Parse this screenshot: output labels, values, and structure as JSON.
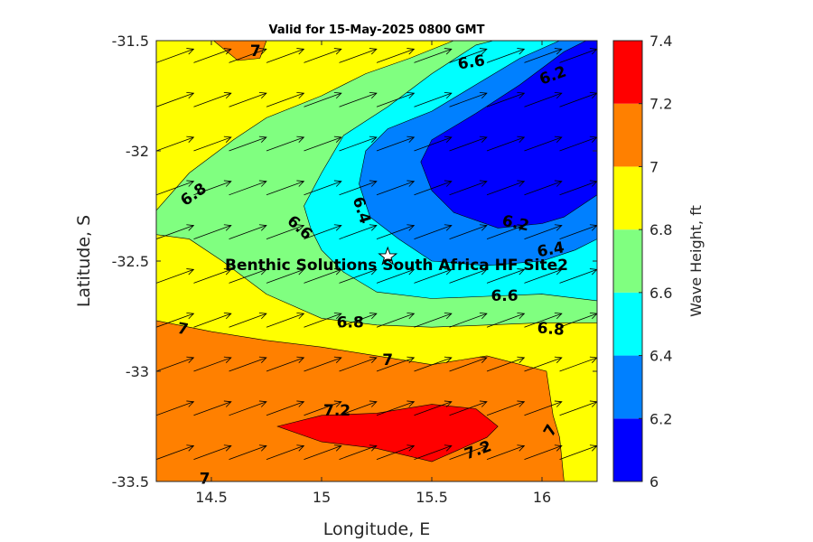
{
  "chart_data": {
    "type": "contour",
    "title": "Valid for 15-May-2025 0800 GMT",
    "xlabel": "Longitude, E",
    "ylabel": "Latitude, S",
    "xlim": [
      14.25,
      16.25
    ],
    "ylim": [
      -33.5,
      -31.5
    ],
    "xticks": [
      14.5,
      15,
      15.5,
      16
    ],
    "xtick_labels": [
      "14.5",
      "15",
      "15.5",
      "16"
    ],
    "yticks": [
      -31.5,
      -32,
      -32.5,
      -33,
      -33.5
    ],
    "ytick_labels": [
      "-31.5",
      "-32",
      "-32.5",
      "-33",
      "-33.5"
    ],
    "colorbar": {
      "label": "Wave Height, ft",
      "levels": [
        6,
        6.2,
        6.4,
        6.6,
        6.8,
        7,
        7.2,
        7.4
      ],
      "tick_labels": [
        "6",
        "6.2",
        "6.4",
        "6.6",
        "6.8",
        "7",
        "7.2",
        "7.4"
      ],
      "colors": [
        "#0000ff",
        "#0080ff",
        "#00ffff",
        "#80ff80",
        "#ffff00",
        "#ff8000",
        "#ff0000"
      ]
    },
    "regions": [
      {
        "level": 7.0,
        "color": "#ff8000",
        "points": [
          [
            14.25,
            -32.77
          ],
          [
            14.5,
            -32.82
          ],
          [
            14.75,
            -32.86
          ],
          [
            15.0,
            -32.89
          ],
          [
            15.25,
            -32.93
          ],
          [
            15.5,
            -32.97
          ],
          [
            15.75,
            -32.93
          ],
          [
            16.02,
            -33.0
          ],
          [
            16.05,
            -33.2
          ],
          [
            16.08,
            -33.3
          ],
          [
            16.1,
            -33.5
          ],
          [
            14.25,
            -33.5
          ]
        ]
      },
      {
        "level": 7.0,
        "color": "#ff8000",
        "points": [
          [
            14.51,
            -31.5
          ],
          [
            14.75,
            -31.5
          ],
          [
            14.72,
            -31.58
          ],
          [
            14.62,
            -31.59
          ]
        ]
      },
      {
        "level": 7.2,
        "color": "#ff0000",
        "points": [
          [
            14.8,
            -33.25
          ],
          [
            15.0,
            -33.2
          ],
          [
            15.25,
            -33.19
          ],
          [
            15.5,
            -33.15
          ],
          [
            15.7,
            -33.17
          ],
          [
            15.8,
            -33.25
          ],
          [
            15.75,
            -33.3
          ],
          [
            15.5,
            -33.41
          ],
          [
            15.25,
            -33.35
          ],
          [
            15.0,
            -33.32
          ]
        ]
      },
      {
        "level": 6.8,
        "color": "#80ff80",
        "points": [
          [
            14.25,
            -32.27
          ],
          [
            14.4,
            -32.1
          ],
          [
            14.6,
            -31.95
          ],
          [
            14.75,
            -31.85
          ],
          [
            15.0,
            -31.75
          ],
          [
            15.2,
            -31.65
          ],
          [
            15.4,
            -31.58
          ],
          [
            15.6,
            -31.5
          ],
          [
            16.25,
            -31.5
          ],
          [
            16.25,
            -32.78
          ],
          [
            16.0,
            -32.78
          ],
          [
            15.75,
            -32.79
          ],
          [
            15.5,
            -32.8
          ],
          [
            15.25,
            -32.79
          ],
          [
            15.0,
            -32.76
          ],
          [
            14.75,
            -32.65
          ],
          [
            14.55,
            -32.5
          ],
          [
            14.4,
            -32.4
          ],
          [
            14.25,
            -32.38
          ]
        ]
      },
      {
        "level": 6.6,
        "color": "#00ffff",
        "points": [
          [
            14.92,
            -32.25
          ],
          [
            15.0,
            -32.1
          ],
          [
            15.1,
            -31.93
          ],
          [
            15.3,
            -31.8
          ],
          [
            15.5,
            -31.65
          ],
          [
            15.7,
            -31.52
          ],
          [
            15.78,
            -31.5
          ],
          [
            16.25,
            -31.5
          ],
          [
            16.25,
            -32.68
          ],
          [
            16.0,
            -32.65
          ],
          [
            15.75,
            -32.66
          ],
          [
            15.5,
            -32.67
          ],
          [
            15.25,
            -32.64
          ],
          [
            15.1,
            -32.55
          ],
          [
            15.0,
            -32.45
          ],
          [
            14.95,
            -32.35
          ]
        ]
      },
      {
        "level": 6.4,
        "color": "#0080ff",
        "points": [
          [
            15.17,
            -32.15
          ],
          [
            15.2,
            -32.0
          ],
          [
            15.3,
            -31.9
          ],
          [
            15.5,
            -31.82
          ],
          [
            15.7,
            -31.7
          ],
          [
            15.9,
            -31.58
          ],
          [
            16.08,
            -31.5
          ],
          [
            16.25,
            -31.5
          ],
          [
            16.25,
            -32.4
          ],
          [
            16.15,
            -32.45
          ],
          [
            16.0,
            -32.5
          ],
          [
            15.75,
            -32.52
          ],
          [
            15.5,
            -32.5
          ],
          [
            15.35,
            -32.4
          ],
          [
            15.22,
            -32.3
          ]
        ]
      },
      {
        "level": 6.2,
        "color": "#0000ff",
        "points": [
          [
            15.45,
            -32.05
          ],
          [
            15.5,
            -31.95
          ],
          [
            15.7,
            -31.83
          ],
          [
            15.9,
            -31.7
          ],
          [
            16.1,
            -31.55
          ],
          [
            16.2,
            -31.5
          ],
          [
            16.25,
            -31.5
          ],
          [
            16.25,
            -32.2
          ],
          [
            16.1,
            -32.3
          ],
          [
            16.0,
            -32.33
          ],
          [
            15.8,
            -32.35
          ],
          [
            15.6,
            -32.28
          ],
          [
            15.5,
            -32.18
          ]
        ]
      }
    ],
    "contour_labels": [
      {
        "text": "7",
        "x": 14.7,
        "y": -31.55,
        "angle": 0
      },
      {
        "text": "6.6",
        "x": 15.68,
        "y": -31.6,
        "angle": -8
      },
      {
        "text": "6.2",
        "x": 16.05,
        "y": -31.66,
        "angle": -20
      },
      {
        "text": "6.8",
        "x": 14.42,
        "y": -32.2,
        "angle": -35
      },
      {
        "text": "6.4",
        "x": 15.18,
        "y": -32.27,
        "angle": 72
      },
      {
        "text": "6.6",
        "x": 14.9,
        "y": -32.35,
        "angle": 42
      },
      {
        "text": "6.2",
        "x": 15.88,
        "y": -32.33,
        "angle": 12
      },
      {
        "text": "6.4",
        "x": 16.04,
        "y": -32.45,
        "angle": -10
      },
      {
        "text": "6.6",
        "x": 15.83,
        "y": -32.66,
        "angle": 0
      },
      {
        "text": "6.8",
        "x": 15.13,
        "y": -32.78,
        "angle": 0
      },
      {
        "text": "6.8",
        "x": 16.04,
        "y": -32.81,
        "angle": 5
      },
      {
        "text": "7",
        "x": 14.37,
        "y": -32.81,
        "angle": 10
      },
      {
        "text": "7",
        "x": 15.3,
        "y": -32.95,
        "angle": 0
      },
      {
        "text": "7.2",
        "x": 15.07,
        "y": -33.18,
        "angle": 0
      },
      {
        "text": "7.2",
        "x": 15.71,
        "y": -33.36,
        "angle": -20
      },
      {
        "text": "7",
        "x": 16.04,
        "y": -33.27,
        "angle": -60
      },
      {
        "text": "7",
        "x": 14.47,
        "y": -33.49,
        "angle": 0
      }
    ],
    "vectors": {
      "lons": [
        14.25,
        14.42,
        14.58,
        14.75,
        14.92,
        15.08,
        15.25,
        15.42,
        15.58,
        15.75,
        15.92,
        16.08,
        16.25
      ],
      "lats": [
        -31.6,
        -31.8,
        -32.0,
        -32.2,
        -32.4,
        -32.6,
        -32.8,
        -33.0,
        -33.2,
        -33.4
      ],
      "direction_deg_from_east": 20,
      "description": "wave direction arrows pointing northeast"
    },
    "site": {
      "name": "Benthic Solutions South Africa HF Site2",
      "lon": 15.3,
      "lat": -32.48,
      "marker": "star"
    }
  }
}
